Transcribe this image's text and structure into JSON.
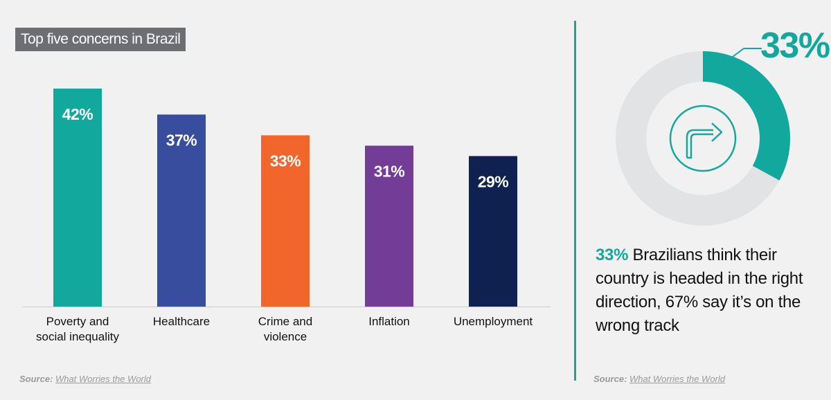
{
  "title": "Top five concerns in Brazil",
  "chart_data": {
    "type": "bar",
    "categories": [
      "Poverty and social inequality",
      "Healthcare",
      "Crime and violence",
      "Inflation",
      "Unemployment"
    ],
    "category_lines": [
      [
        "Poverty and",
        "social inequality"
      ],
      [
        "Healthcare"
      ],
      [
        "Crime and",
        "violence"
      ],
      [
        "Inflation"
      ],
      [
        "Unemployment"
      ]
    ],
    "values": [
      42,
      37,
      33,
      31,
      29
    ],
    "value_labels": [
      "42%",
      "37%",
      "33%",
      "31%",
      "29%"
    ],
    "colors": [
      "#12a89d",
      "#384d9e",
      "#f2652b",
      "#733c97",
      "#0e2150"
    ],
    "ylim": [
      0,
      42
    ],
    "grid": false,
    "legend": "none"
  },
  "donut": {
    "value": 33,
    "label": "33%",
    "highlight_color": "#12a89d",
    "track_color": "#e2e3e4",
    "icon": "turn-right-arrow-icon"
  },
  "statement": {
    "highlight": "33%",
    "text": " Brazilians think their country is headed in the right direction, 67% say it’s on the wrong track"
  },
  "source_left": {
    "label": "Source:",
    "link": "What Worries the World"
  },
  "source_right": {
    "label": "Source:",
    "link": "What Worries the World"
  }
}
